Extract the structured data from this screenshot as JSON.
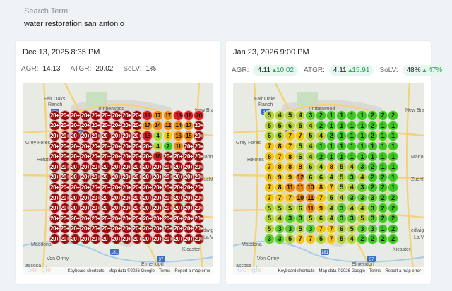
{
  "search": {
    "label": "Search Term:",
    "term": "water restoration san antonio"
  },
  "colors": {
    "red": "#9a0a0a",
    "redBright": "#d81e1e",
    "orange": "#ea8a10",
    "yellow": "#f2c418",
    "yellowGreen": "#b4d334",
    "green": "#5fcf2a",
    "greenBright": "#3fc81f"
  },
  "map_labels": {
    "fair_oaks": "Fair Oaks",
    "ranch": "Ranch",
    "timberwood": "Timberwood",
    "park": "Park",
    "new_bra": "New Bra",
    "grey_forest": "Grey Fores",
    "helotes": "Helotes",
    "marion": "Marion",
    "zuehl": "Zuehl",
    "redwig": "edwig",
    "la_vernia": "La V",
    "kicaster": "Kicaster",
    "macdona": "Macdona",
    "von_ormy": "Von Ormy",
    "elmendorf": "Elmendorf",
    "ascosa": "ascosa",
    "hw10": "10",
    "hw181": "181",
    "hw37": "37",
    "hw1604": "1604"
  },
  "footer": {
    "shortcuts": "Keyboard shortcuts",
    "mapdata": "Map data ©2026 Google",
    "terms": "Terms",
    "report": "Report a map error"
  },
  "left": {
    "date": "Dec 13, 2025 8:35 PM",
    "agr_label": "AGR:",
    "agr": "14.13",
    "atgr_label": "ATGR:",
    "atgr": "20.02",
    "solv_label": "SoLV:",
    "solv": "1%",
    "grid": [
      [
        "20+",
        "20+",
        "20+",
        "20+",
        "20+",
        "20+",
        "20+",
        "20+",
        "20+",
        "19",
        "17",
        "17",
        "18",
        "18",
        "20"
      ],
      [
        "20+",
        "20+",
        "20+",
        "20+",
        "20+",
        "20+",
        "20+",
        "20+",
        "20+",
        "17",
        "14",
        "12",
        "14",
        "17",
        "20+"
      ],
      [
        "20+",
        "20+",
        "20+",
        "20+",
        "20+",
        "20+",
        "20+",
        "20+",
        "20+",
        "18",
        "4",
        "8",
        "16",
        "15",
        "20+"
      ],
      [
        "20+",
        "20+",
        "20+",
        "20+",
        "20+",
        "20+",
        "20+",
        "20+",
        "20+",
        "20+",
        "4",
        "2",
        "11",
        "20+",
        "20+"
      ],
      [
        "20+",
        "20+",
        "20+",
        "20+",
        "20+",
        "20+",
        "20+",
        "20+",
        "20+",
        "20+",
        "18",
        "20+",
        "20+",
        "20+",
        "20+"
      ],
      [
        "20+",
        "20+",
        "20+",
        "20+",
        "20+",
        "20+",
        "20+",
        "20+",
        "20+",
        "20+",
        "20+",
        "20+",
        "20+",
        "20+",
        "20+"
      ],
      [
        "20+",
        "20+",
        "20+",
        "20+",
        "20+",
        "20+",
        "20+",
        "20+",
        "20+",
        "20+",
        "20+",
        "20+",
        "20+",
        "20+",
        "20+"
      ],
      [
        "20+",
        "20+",
        "20+",
        "20+",
        "20+",
        "20+",
        "20+",
        "20+",
        "20+",
        "20+",
        "20+",
        "20+",
        "20+",
        "20+",
        "20+"
      ],
      [
        "20+",
        "20+",
        "20+",
        "20+",
        "20+",
        "20+",
        "20+",
        "20+",
        "20+",
        "20+",
        "20+",
        "20+",
        "20+",
        "20+",
        "20+"
      ],
      [
        "20+",
        "20+",
        "20+",
        "20+",
        "20+",
        "20+",
        "20+",
        "20+",
        "20+",
        "20+",
        "20+",
        "20+",
        "20+",
        "20+",
        "20+"
      ],
      [
        "20+",
        "20+",
        "20+",
        "20+",
        "20+",
        "20+",
        "20+",
        "20+",
        "20+",
        "20+",
        "20+",
        "20+",
        "20+",
        "20+",
        "20+"
      ],
      [
        "20+",
        "20+",
        "20+",
        "20+",
        "20+",
        "20+",
        "20+",
        "20+",
        "20+",
        "20+",
        "20+",
        "20+",
        "20+",
        "20+",
        "20+"
      ],
      [
        "20+",
        "20+",
        "20+",
        "20+",
        "20+",
        "20+",
        "20+",
        "20+",
        "20+",
        "20+",
        "20+",
        "20+",
        "20+",
        "20+",
        "20+"
      ]
    ]
  },
  "right": {
    "date": "Jan 23, 2026 9:00 PM",
    "agr_label": "AGR:",
    "agr": "4.11",
    "agr_change": "10.02",
    "atgr_label": "ATGR:",
    "atgr": "4.11",
    "atgr_change": "15.91",
    "solv_label": "SoLV:",
    "solv": "48%",
    "solv_change": "47%",
    "grid": [
      [
        "5",
        "4",
        "5",
        "4",
        "3",
        "2",
        "1",
        "1",
        "1",
        "1",
        "2",
        "2",
        "2"
      ],
      [
        "5",
        "5",
        "6",
        "5",
        "4",
        "2",
        "1",
        "1",
        "1",
        "1",
        "2",
        "1",
        "1"
      ],
      [
        "6",
        "6",
        "7",
        "7",
        "5",
        "4",
        "2",
        "1",
        "1",
        "1",
        "2",
        "1",
        "1"
      ],
      [
        "7",
        "8",
        "7",
        "5",
        "4",
        "1",
        "1",
        "1",
        "1",
        "1",
        "1",
        "1",
        "1"
      ],
      [
        "8",
        "7",
        "8",
        "6",
        "4",
        "2",
        "1",
        "1",
        "1",
        "1",
        "1",
        "1",
        "1"
      ],
      [
        "7",
        "8",
        "8",
        "8",
        "6",
        "4",
        "8",
        "5",
        "4",
        "3",
        "2",
        "1",
        "1"
      ],
      [
        "8",
        "9",
        "9",
        "12",
        "6",
        "6",
        "4",
        "5",
        "3",
        "4",
        "2",
        "2",
        "1"
      ],
      [
        "7",
        "8",
        "11",
        "11",
        "10",
        "8",
        "7",
        "5",
        "4",
        "3",
        "2",
        "2",
        "1"
      ],
      [
        "7",
        "7",
        "7",
        "10",
        "11",
        "7",
        "5",
        "4",
        "3",
        "3",
        "3",
        "2",
        "2"
      ],
      [
        "5",
        "5",
        "5",
        "6",
        "11",
        "9",
        "4",
        "3",
        "4",
        "4",
        "3",
        "2",
        "2"
      ],
      [
        "5",
        "4",
        "3",
        "3",
        "5",
        "6",
        "4",
        "3",
        "3",
        "5",
        "3",
        "2",
        "2"
      ],
      [
        "5",
        "3",
        "3",
        "5",
        "3",
        "7",
        "7",
        "6",
        "5",
        "3",
        "3",
        "1",
        "2"
      ],
      [
        "3",
        "3",
        "5",
        "7",
        "7",
        "5",
        "7",
        "5",
        "4",
        "2",
        "2",
        "2",
        "2"
      ]
    ]
  }
}
